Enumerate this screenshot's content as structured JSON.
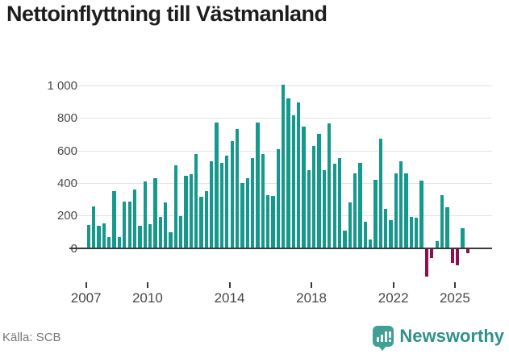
{
  "header": {
    "title": "Nettoinflyttning till Västmanland"
  },
  "chart_data": {
    "type": "bar",
    "title": "Nettoinflyttning till Västmanland",
    "xlabel": "",
    "ylabel": "",
    "period": "quarterly",
    "start_quarter": "2007-Q1",
    "end_quarter": "2025-Q3",
    "quarters": [
      "2007Q1",
      "2007Q2",
      "2007Q3",
      "2007Q4",
      "2008Q1",
      "2008Q2",
      "2008Q3",
      "2008Q4",
      "2009Q1",
      "2009Q2",
      "2009Q3",
      "2009Q4",
      "2010Q1",
      "2010Q2",
      "2010Q3",
      "2010Q4",
      "2011Q1",
      "2011Q2",
      "2011Q3",
      "2011Q4",
      "2012Q1",
      "2012Q2",
      "2012Q3",
      "2012Q4",
      "2013Q1",
      "2013Q2",
      "2013Q3",
      "2013Q4",
      "2014Q1",
      "2014Q2",
      "2014Q3",
      "2014Q4",
      "2015Q1",
      "2015Q2",
      "2015Q3",
      "2015Q4",
      "2016Q1",
      "2016Q2",
      "2016Q3",
      "2016Q4",
      "2017Q1",
      "2017Q2",
      "2017Q3",
      "2017Q4",
      "2018Q1",
      "2018Q2",
      "2018Q3",
      "2018Q4",
      "2019Q1",
      "2019Q2",
      "2019Q3",
      "2019Q4",
      "2020Q1",
      "2020Q2",
      "2020Q3",
      "2020Q4",
      "2021Q1",
      "2021Q2",
      "2021Q3",
      "2021Q4",
      "2022Q1",
      "2022Q2",
      "2022Q3",
      "2022Q4",
      "2023Q1",
      "2023Q2",
      "2023Q3",
      "2023Q4",
      "2024Q1",
      "2024Q2",
      "2024Q3",
      "2024Q4",
      "2025Q1",
      "2025Q2",
      "2025Q3"
    ],
    "values": [
      145,
      260,
      140,
      155,
      70,
      355,
      70,
      290,
      290,
      365,
      140,
      410,
      150,
      430,
      195,
      285,
      100,
      510,
      200,
      445,
      455,
      580,
      320,
      355,
      535,
      775,
      525,
      570,
      660,
      735,
      400,
      430,
      555,
      775,
      580,
      330,
      325,
      610,
      1010,
      925,
      820,
      900,
      750,
      480,
      630,
      705,
      480,
      770,
      520,
      555,
      110,
      285,
      460,
      525,
      165,
      55,
      420,
      675,
      245,
      175,
      460,
      535,
      460,
      195,
      190,
      415,
      -175,
      -60,
      45,
      330,
      255,
      -90,
      -105,
      125,
      -30
    ],
    "y_ticks": [
      0,
      200,
      400,
      600,
      800,
      1000
    ],
    "y_tick_labels": [
      "0",
      "200",
      "400",
      "600",
      "800",
      "1 000"
    ],
    "x_tick_years": [
      2007,
      2010,
      2014,
      2018,
      2022,
      2025
    ],
    "x_tick_labels": [
      "2007",
      "2010",
      "2014",
      "2018",
      "2022",
      "2025"
    ],
    "ylim": [
      -200,
      1050
    ],
    "grid": "horizontal",
    "legend": "none",
    "colors": {
      "positive_bar": "#16998d",
      "negative_bar": "#8c104d",
      "axis_line": "#3a3a3a",
      "gridline": "#e4e4e4",
      "tick_label": "#484848"
    }
  },
  "footer": {
    "source": "Källa: SCB",
    "brand": "Newsworthy",
    "brand_color": "#2f9289"
  }
}
